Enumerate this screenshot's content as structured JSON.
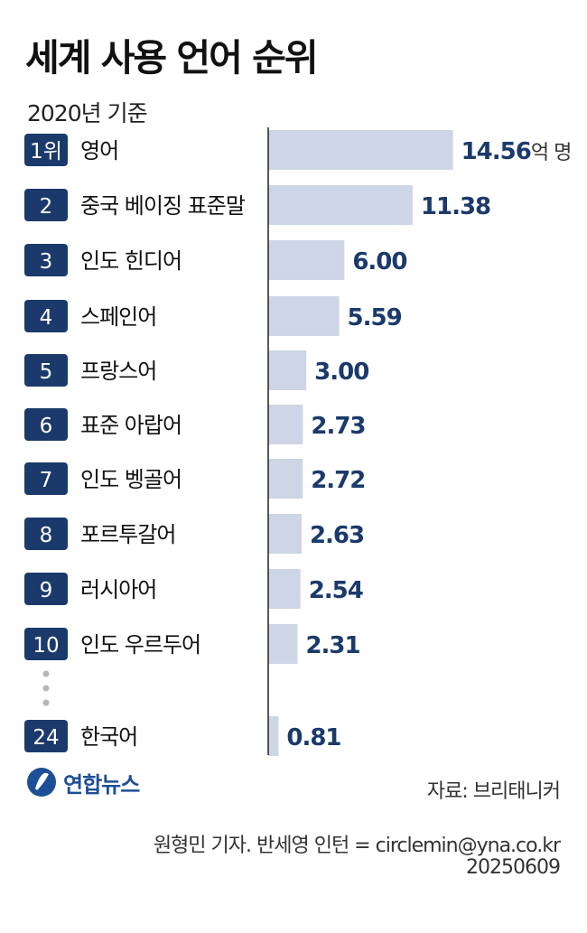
{
  "title": "세계 사용 언어 순위",
  "subtitle": "2020년 기준",
  "unit": "억 명",
  "ellipsis": "⋮",
  "colors": {
    "badge": "#1b3a6b",
    "bar": "#cdd5e6",
    "value": "#1b3a6b",
    "axis": "#222222",
    "dots": "#b5b5b5"
  },
  "chart_data": {
    "type": "bar",
    "orientation": "horizontal",
    "categories": [
      "영어",
      "중국 베이징 표준말",
      "인도 힌디어",
      "스페인어",
      "프랑스어",
      "표준 아랍어",
      "인도 벵골어",
      "포르투갈어",
      "러시아어",
      "인도 우르두어",
      "한국어"
    ],
    "ranks": [
      "1위",
      "2",
      "3",
      "4",
      "5",
      "6",
      "7",
      "8",
      "9",
      "10",
      "24"
    ],
    "values": [
      14.56,
      11.38,
      6.0,
      5.59,
      3.0,
      2.73,
      2.72,
      2.63,
      2.54,
      2.31,
      0.81
    ],
    "value_labels": [
      "14.56",
      "11.38",
      "6.00",
      "5.59",
      "3.00",
      "2.73",
      "2.72",
      "2.63",
      "2.54",
      "2.31",
      "0.81"
    ],
    "xlim": [
      0,
      15.3
    ]
  },
  "footer": {
    "logo_text": "연합뉴스",
    "source": "자료: 브리태니커",
    "credit": "원형민 기자. 반세영 인턴 = circlemin@yna.co.kr",
    "date": "20250609"
  }
}
